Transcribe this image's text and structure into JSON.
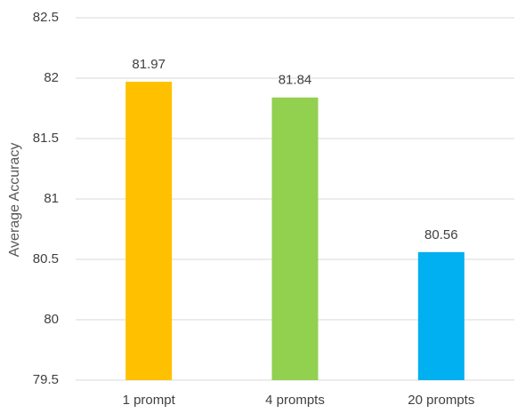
{
  "chart_data": {
    "type": "bar",
    "y_label": "Average Accuracy",
    "categories": [
      "1 prompt",
      "4 prompts",
      "20 prompts"
    ],
    "values": [
      81.97,
      81.84,
      80.56
    ],
    "colors": [
      "#ffc000",
      "#92d050",
      "#00b0f0"
    ],
    "ylim": [
      79.5,
      82.5
    ],
    "yticks": [
      79.5,
      80,
      80.5,
      81,
      81.5,
      82,
      82.5
    ],
    "grid": true
  }
}
